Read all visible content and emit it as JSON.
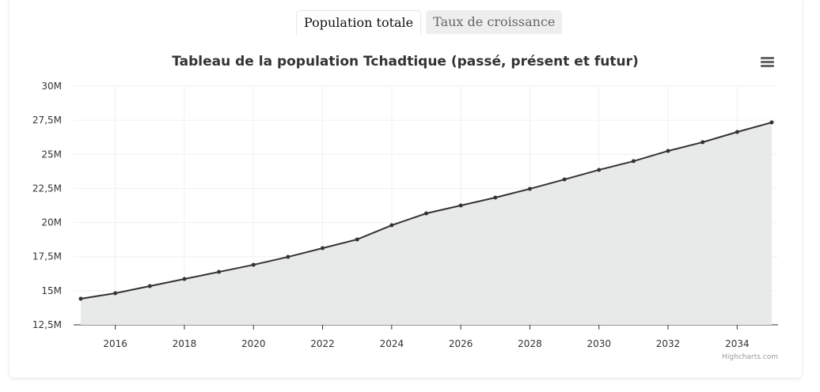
{
  "tabs": [
    {
      "label": "Population totale",
      "active": true
    },
    {
      "label": "Taux de croissance",
      "active": false
    }
  ],
  "credit": "Highcharts.com",
  "menu_icon": "hamburger-menu-icon",
  "chart_data": {
    "type": "area",
    "title": "Tableau de la population Tchadtique (passé, présent et futur)",
    "xlabel": "",
    "ylabel": "",
    "x": [
      2015,
      2016,
      2017,
      2018,
      2019,
      2020,
      2021,
      2022,
      2023,
      2024,
      2025,
      2026,
      2027,
      2028,
      2029,
      2030,
      2031,
      2032,
      2033,
      2034,
      2035
    ],
    "values": [
      14.41,
      14.82,
      15.34,
      15.86,
      16.38,
      16.9,
      17.48,
      18.12,
      18.76,
      19.8,
      20.67,
      21.25,
      21.83,
      22.47,
      23.16,
      23.86,
      24.5,
      25.25,
      25.89,
      26.64,
      27.34
    ],
    "unit": "M",
    "xlim": [
      2015,
      2035
    ],
    "ylim": [
      12.5,
      30
    ],
    "yticks": [
      {
        "v": 12.5,
        "label": "12,5M"
      },
      {
        "v": 15,
        "label": "15M"
      },
      {
        "v": 17.5,
        "label": "17,5M"
      },
      {
        "v": 20,
        "label": "20M"
      },
      {
        "v": 22.5,
        "label": "22,5M"
      },
      {
        "v": 25,
        "label": "25M"
      },
      {
        "v": 27.5,
        "label": "27,5M"
      },
      {
        "v": 30,
        "label": "30M"
      }
    ],
    "xticks": [
      2016,
      2018,
      2020,
      2022,
      2024,
      2026,
      2028,
      2030,
      2032,
      2034
    ],
    "grid": true,
    "colors": {
      "line": "#333333",
      "fill": "#e8e9e9",
      "grid": "#f0f0f0"
    }
  }
}
